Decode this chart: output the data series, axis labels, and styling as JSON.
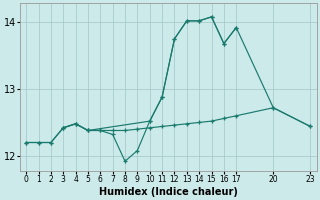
{
  "xlabel": "Humidex (Indice chaleur)",
  "background_color": "#cceaea",
  "grid_color": "#aacccc",
  "line_color": "#1a7a6e",
  "xlim": [
    -0.5,
    23.5
  ],
  "ylim": [
    11.78,
    14.28
  ],
  "yticks": [
    12,
    13,
    14
  ],
  "xtick_positions": [
    0,
    1,
    2,
    3,
    4,
    5,
    6,
    7,
    8,
    9,
    10,
    11,
    12,
    13,
    14,
    15,
    16,
    17,
    20,
    23
  ],
  "line1_x": [
    0,
    1,
    2,
    3,
    4,
    5,
    6,
    7,
    8,
    9,
    10,
    11,
    12,
    13,
    14,
    15,
    16,
    17
  ],
  "line1_y": [
    12.2,
    12.2,
    12.2,
    12.42,
    12.48,
    12.38,
    12.38,
    12.32,
    11.92,
    12.08,
    12.52,
    12.88,
    13.75,
    14.02,
    14.02,
    14.08,
    13.68,
    13.92
  ],
  "line2_x": [
    0,
    1,
    2,
    3,
    4,
    5,
    6,
    7,
    8,
    9,
    10,
    11,
    12,
    13,
    14,
    15,
    16,
    17,
    20,
    23
  ],
  "line2_y": [
    12.2,
    12.2,
    12.2,
    12.42,
    12.48,
    12.38,
    12.38,
    12.38,
    12.38,
    12.4,
    12.42,
    12.44,
    12.46,
    12.48,
    12.5,
    12.52,
    12.56,
    12.6,
    12.72,
    12.44
  ],
  "line3_x": [
    3,
    4,
    5,
    10,
    11,
    12,
    13,
    14,
    15,
    16,
    17,
    20,
    23
  ],
  "line3_y": [
    12.42,
    12.48,
    12.38,
    12.52,
    12.88,
    13.75,
    14.02,
    14.02,
    14.08,
    13.68,
    13.92,
    12.72,
    12.44
  ]
}
